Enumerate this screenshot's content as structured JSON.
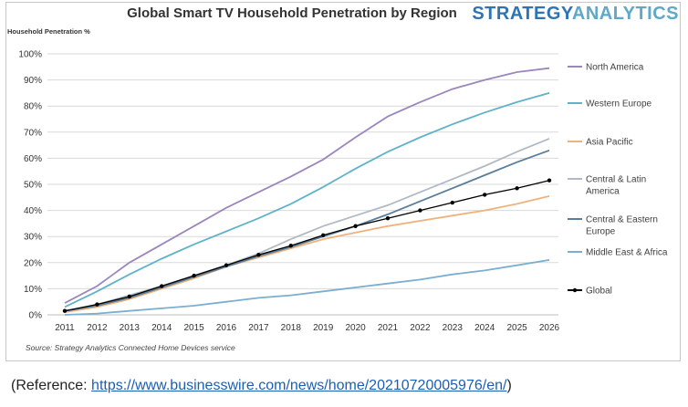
{
  "header": {
    "title": "Global Smart TV Household Penetration by Region",
    "brand_part1": "STRATEGY",
    "brand_part2": "ANALYTICS"
  },
  "footer": {
    "source": "Source: Strategy Analytics Connected Home Devices service",
    "reference_prefix": "(Reference: ",
    "reference_link": "https://www.businesswire.com/news/home/20210720005976/en/",
    "reference_suffix": ")"
  },
  "chart_data": {
    "type": "line",
    "title": "Global Smart TV Household Penetration by Region",
    "ylabel": "Household Penetration %",
    "xlabel": "",
    "ylim": [
      0,
      100
    ],
    "yticks": [
      "0%",
      "10%",
      "20%",
      "30%",
      "40%",
      "50%",
      "60%",
      "70%",
      "80%",
      "90%",
      "100%"
    ],
    "x": [
      "2011",
      "2012",
      "2013",
      "2014",
      "2015",
      "2016",
      "2017",
      "2018",
      "2019",
      "2020",
      "2021",
      "2022",
      "2023",
      "2024",
      "2025",
      "2026"
    ],
    "grid": true,
    "legend_position": "right",
    "series": [
      {
        "name": "North America",
        "color": "#9b86bd",
        "values": [
          4.5,
          11,
          20,
          27,
          34,
          41,
          47,
          53,
          59.5,
          68,
          76,
          81.5,
          86.5,
          90,
          93,
          94.5
        ]
      },
      {
        "name": "Western Europe",
        "color": "#5fb3c8",
        "values": [
          3,
          9,
          15.5,
          21.5,
          27,
          32,
          37,
          42.5,
          49,
          56,
          62.5,
          68,
          73,
          77.5,
          81.5,
          85
        ]
      },
      {
        "name": "Asia Pacific",
        "color": "#f0b27a",
        "values": [
          1,
          3,
          6,
          10,
          14,
          18.5,
          22,
          25.5,
          29,
          31.5,
          34,
          36,
          38,
          40,
          42.5,
          45.5
        ]
      },
      {
        "name": "Central & Latin America",
        "color": "#b0bac4",
        "values": [
          1.5,
          4,
          7.5,
          11,
          15,
          19,
          23.5,
          29,
          34,
          38,
          42,
          47,
          52,
          57,
          62.5,
          67.5
        ]
      },
      {
        "name": "Central & Eastern Europe",
        "color": "#5a7d9a",
        "values": [
          1.5,
          3.5,
          6.5,
          10.5,
          14.5,
          18.5,
          22.5,
          26,
          30,
          34,
          38.5,
          43.5,
          48.5,
          53.5,
          58.5,
          63
        ]
      },
      {
        "name": "Middle East & Africa",
        "color": "#7bafd0",
        "values": [
          0,
          0.5,
          1.5,
          2.5,
          3.5,
          5,
          6.5,
          7.5,
          9,
          10.5,
          12,
          13.5,
          15.5,
          17,
          19,
          21
        ]
      },
      {
        "name": "Global",
        "color": "#000000",
        "marker": "dot",
        "values": [
          1.5,
          4,
          7,
          11,
          15,
          19,
          23,
          26.5,
          30.5,
          34,
          37,
          40,
          43,
          46,
          48.5,
          51.5
        ]
      }
    ]
  }
}
